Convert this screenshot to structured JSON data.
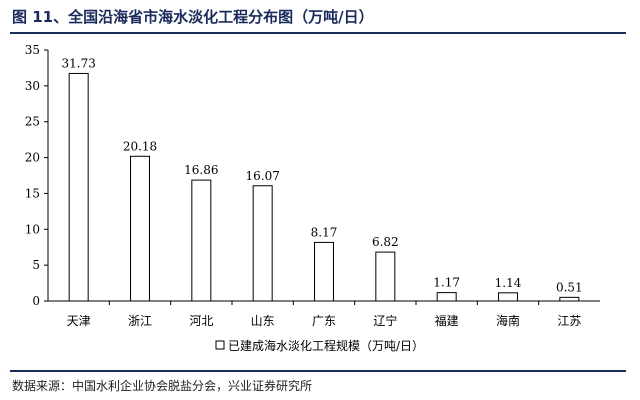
{
  "title": "图 11、全国沿海省市海水淡化工程分布图（万吨/日）",
  "source": "数据来源：中国水利企业协会脱盐分会，兴业证券研究所",
  "chart_data": {
    "type": "bar",
    "title": "图 11、全国沿海省市海水淡化工程分布图（万吨/日）",
    "categories": [
      "天津",
      "浙江",
      "河北",
      "山东",
      "广东",
      "辽宁",
      "福建",
      "海南",
      "江苏"
    ],
    "series": [
      {
        "name": "已建成海水淡化工程规模（万吨/日）",
        "values": [
          31.73,
          20.18,
          16.86,
          16.07,
          8.17,
          6.82,
          1.17,
          1.14,
          0.51
        ]
      }
    ],
    "value_labels": [
      "31.73",
      "20.18",
      "16.86",
      "16.07",
      "8.17",
      "6.82",
      "1.17",
      "1.14",
      "0.51"
    ],
    "ylim": [
      0,
      35
    ],
    "yticks": [
      0,
      5,
      10,
      15,
      20,
      25,
      30,
      35
    ],
    "ytick_labels": [
      "0",
      "5",
      "10",
      "15",
      "20",
      "25",
      "30",
      "35"
    ],
    "xlabel": "",
    "ylabel": "",
    "grid": false,
    "legend": {
      "position": "bottom",
      "label": "已建成海水淡化工程规模（万吨/日）"
    },
    "colors": {
      "bar_fill": "#ffffff",
      "bar_stroke": "#000000",
      "title": "#1a2a5a"
    }
  }
}
